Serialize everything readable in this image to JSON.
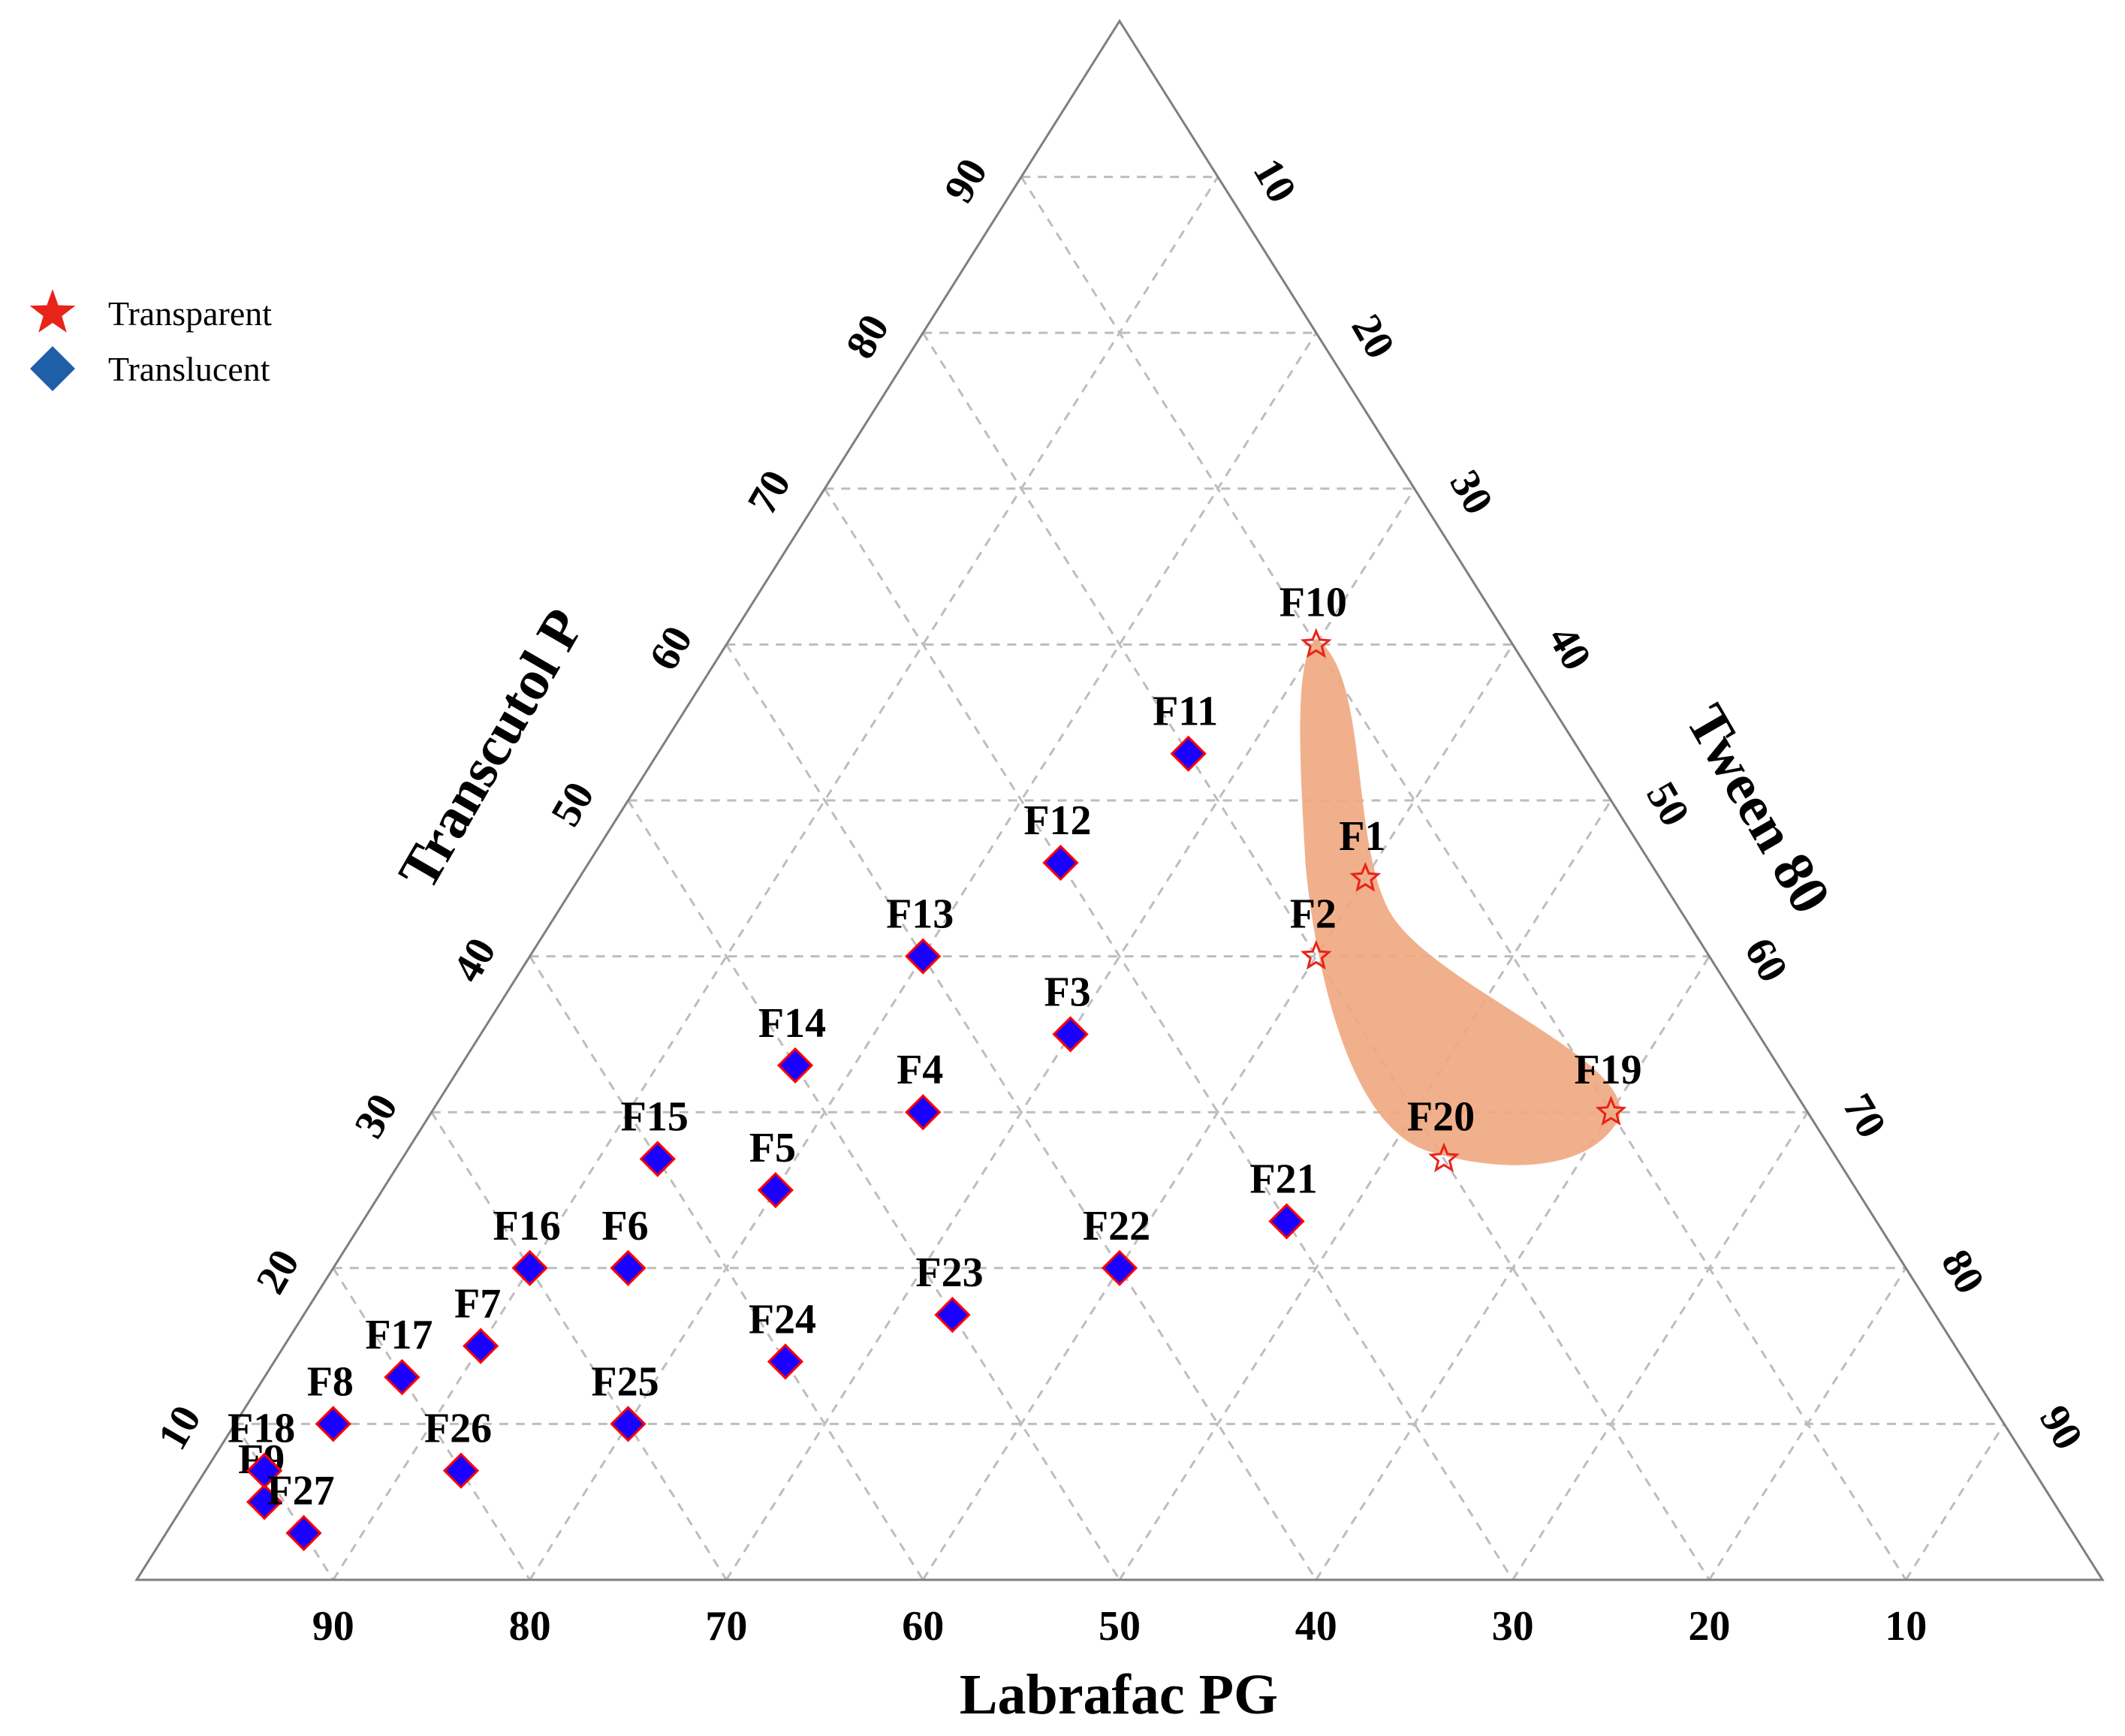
{
  "chart_data": {
    "type": "ternary-scatter",
    "axes": {
      "bottom": "Labrafac PG",
      "left": "Transcutol P",
      "right": "Tween 80"
    },
    "ticks": [
      "10",
      "20",
      "30",
      "40",
      "50",
      "60",
      "70",
      "80",
      "90"
    ],
    "grid": true,
    "legend_position": "top-left",
    "legend": [
      {
        "name": "Transparent",
        "symbol": "star",
        "color": "#e8231a"
      },
      {
        "name": "Translucent",
        "symbol": "diamond",
        "color": "#1f5fa8"
      }
    ],
    "colors": {
      "transparent_star": "#e8231a",
      "translucent_fill": "#1a00ff",
      "translucent_outline": "#ff0000",
      "region_fill": "#f0a77f",
      "axis": "#7f7f7f",
      "grid": "#bdbdbd"
    },
    "points": [
      {
        "label": "F1",
        "labrafac": 15,
        "transcutol": 45,
        "tween80": 40,
        "class": "Transparent"
      },
      {
        "label": "F2",
        "labrafac": 20,
        "transcutol": 40,
        "tween80": 40,
        "class": "Transparent"
      },
      {
        "label": "F3",
        "labrafac": 35,
        "transcutol": 35,
        "tween80": 30,
        "class": "Translucent"
      },
      {
        "label": "F4",
        "labrafac": 45,
        "transcutol": 30,
        "tween80": 25,
        "class": "Translucent"
      },
      {
        "label": "F5",
        "labrafac": 55,
        "transcutol": 25,
        "tween80": 20,
        "class": "Translucent"
      },
      {
        "label": "F6",
        "labrafac": 65,
        "transcutol": 20,
        "tween80": 15,
        "class": "Translucent"
      },
      {
        "label": "F7",
        "labrafac": 75,
        "transcutol": 15,
        "tween80": 10,
        "class": "Translucent"
      },
      {
        "label": "F8",
        "labrafac": 85,
        "transcutol": 10,
        "tween80": 5,
        "class": "Translucent"
      },
      {
        "label": "F9",
        "labrafac": 91,
        "transcutol": 5,
        "tween80": 4,
        "class": "Translucent"
      },
      {
        "label": "F10",
        "labrafac": 10,
        "transcutol": 60,
        "tween80": 30,
        "class": "Transparent"
      },
      {
        "label": "F11",
        "labrafac": 20,
        "transcutol": 53,
        "tween80": 27,
        "class": "Translucent"
      },
      {
        "label": "F12",
        "labrafac": 30,
        "transcutol": 46,
        "tween80": 24,
        "class": "Translucent"
      },
      {
        "label": "F13",
        "labrafac": 40,
        "transcutol": 40,
        "tween80": 20,
        "class": "Translucent"
      },
      {
        "label": "F14",
        "labrafac": 50,
        "transcutol": 33,
        "tween80": 17,
        "class": "Translucent"
      },
      {
        "label": "F15",
        "labrafac": 60,
        "transcutol": 27,
        "tween80": 13,
        "class": "Translucent"
      },
      {
        "label": "F16",
        "labrafac": 70,
        "transcutol": 20,
        "tween80": 10,
        "class": "Translucent"
      },
      {
        "label": "F17",
        "labrafac": 80,
        "transcutol": 13,
        "tween80": 7,
        "class": "Translucent"
      },
      {
        "label": "F18",
        "labrafac": 90,
        "transcutol": 7,
        "tween80": 3,
        "class": "Translucent"
      },
      {
        "label": "F19",
        "labrafac": 10,
        "transcutol": 30,
        "tween80": 60,
        "class": "Transparent"
      },
      {
        "label": "F20",
        "labrafac": 20,
        "transcutol": 27,
        "tween80": 53,
        "class": "Transparent"
      },
      {
        "label": "F21",
        "labrafac": 30,
        "transcutol": 23,
        "tween80": 47,
        "class": "Translucent"
      },
      {
        "label": "F22",
        "labrafac": 40,
        "transcutol": 20,
        "tween80": 40,
        "class": "Translucent"
      },
      {
        "label": "F23",
        "labrafac": 50,
        "transcutol": 17,
        "tween80": 33,
        "class": "Translucent"
      },
      {
        "label": "F24",
        "labrafac": 60,
        "transcutol": 14,
        "tween80": 26,
        "class": "Translucent"
      },
      {
        "label": "F25",
        "labrafac": 70,
        "transcutol": 10,
        "tween80": 20,
        "class": "Translucent"
      },
      {
        "label": "F26",
        "labrafac": 80,
        "transcutol": 7,
        "tween80": 13,
        "class": "Translucent"
      },
      {
        "label": "F27",
        "labrafac": 90,
        "transcutol": 3,
        "tween80": 7,
        "class": "Translucent"
      }
    ]
  }
}
